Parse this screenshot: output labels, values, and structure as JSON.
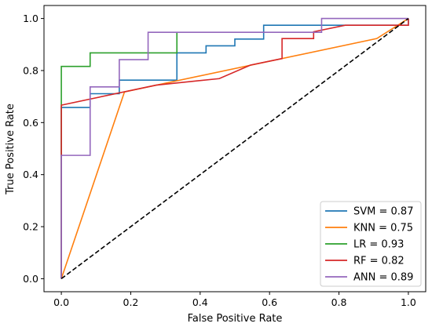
{
  "chart_data": {
    "type": "line",
    "title": "",
    "xlabel": "False Positive Rate",
    "ylabel": "True Positive Rate",
    "xlim": [
      -0.05,
      1.05
    ],
    "ylim": [
      -0.05,
      1.05
    ],
    "xticks": [
      0.0,
      0.2,
      0.4,
      0.6,
      0.8,
      1.0
    ],
    "yticks": [
      0.0,
      0.2,
      0.4,
      0.6,
      0.8,
      1.0
    ],
    "xtick_labels": [
      "0.0",
      "0.2",
      "0.4",
      "0.6",
      "0.8",
      "1.0"
    ],
    "ytick_labels": [
      "0.0",
      "0.2",
      "0.4",
      "0.6",
      "0.8",
      "1.0"
    ],
    "grid": false,
    "legend_position": "lower-right",
    "series": [
      {
        "name": "SVM = 0.87",
        "color": "#1f77b4",
        "x": [
          0.0,
          0.0,
          0.083,
          0.083,
          0.167,
          0.167,
          0.333,
          0.333,
          0.417,
          0.417,
          0.5,
          0.5,
          0.583,
          0.583,
          0.75,
          0.75,
          0.8,
          1.0,
          1.0
        ],
        "y": [
          0.0,
          0.658,
          0.658,
          0.711,
          0.711,
          0.763,
          0.763,
          0.868,
          0.868,
          0.895,
          0.895,
          0.921,
          0.921,
          0.974,
          0.974,
          0.974,
          0.974,
          0.974,
          1.0
        ]
      },
      {
        "name": "KNN = 0.75",
        "color": "#ff7f0e",
        "x": [
          0.0,
          0.182,
          0.909,
          1.0
        ],
        "y": [
          0.0,
          0.718,
          0.923,
          1.0
        ]
      },
      {
        "name": "LR = 0.93",
        "color": "#2ca02c",
        "x": [
          0.0,
          0.0,
          0.083,
          0.083,
          0.333,
          0.333
        ],
        "y": [
          0.0,
          0.816,
          0.816,
          0.868,
          0.868,
          0.947
        ]
      },
      {
        "name": "RF = 0.82",
        "color": "#d62728",
        "x": [
          0.0,
          0.0,
          0.273,
          0.455,
          0.545,
          0.636,
          0.636,
          0.727,
          0.727,
          0.818,
          1.0,
          1.0
        ],
        "y": [
          0.0,
          0.667,
          0.744,
          0.769,
          0.821,
          0.846,
          0.923,
          0.923,
          0.949,
          0.974,
          0.974,
          1.0
        ]
      },
      {
        "name": "ANN = 0.89",
        "color": "#9467bd",
        "x": [
          0.0,
          0.0,
          0.083,
          0.083,
          0.167,
          0.167,
          0.25,
          0.25,
          0.75,
          0.75,
          1.0
        ],
        "y": [
          0.0,
          0.474,
          0.474,
          0.737,
          0.737,
          0.842,
          0.842,
          0.947,
          0.947,
          1.0,
          1.0
        ]
      }
    ],
    "reference_line": {
      "style": "dashed",
      "color": "#000000",
      "x": [
        0.0,
        1.0
      ],
      "y": [
        0.0,
        1.0
      ]
    }
  }
}
